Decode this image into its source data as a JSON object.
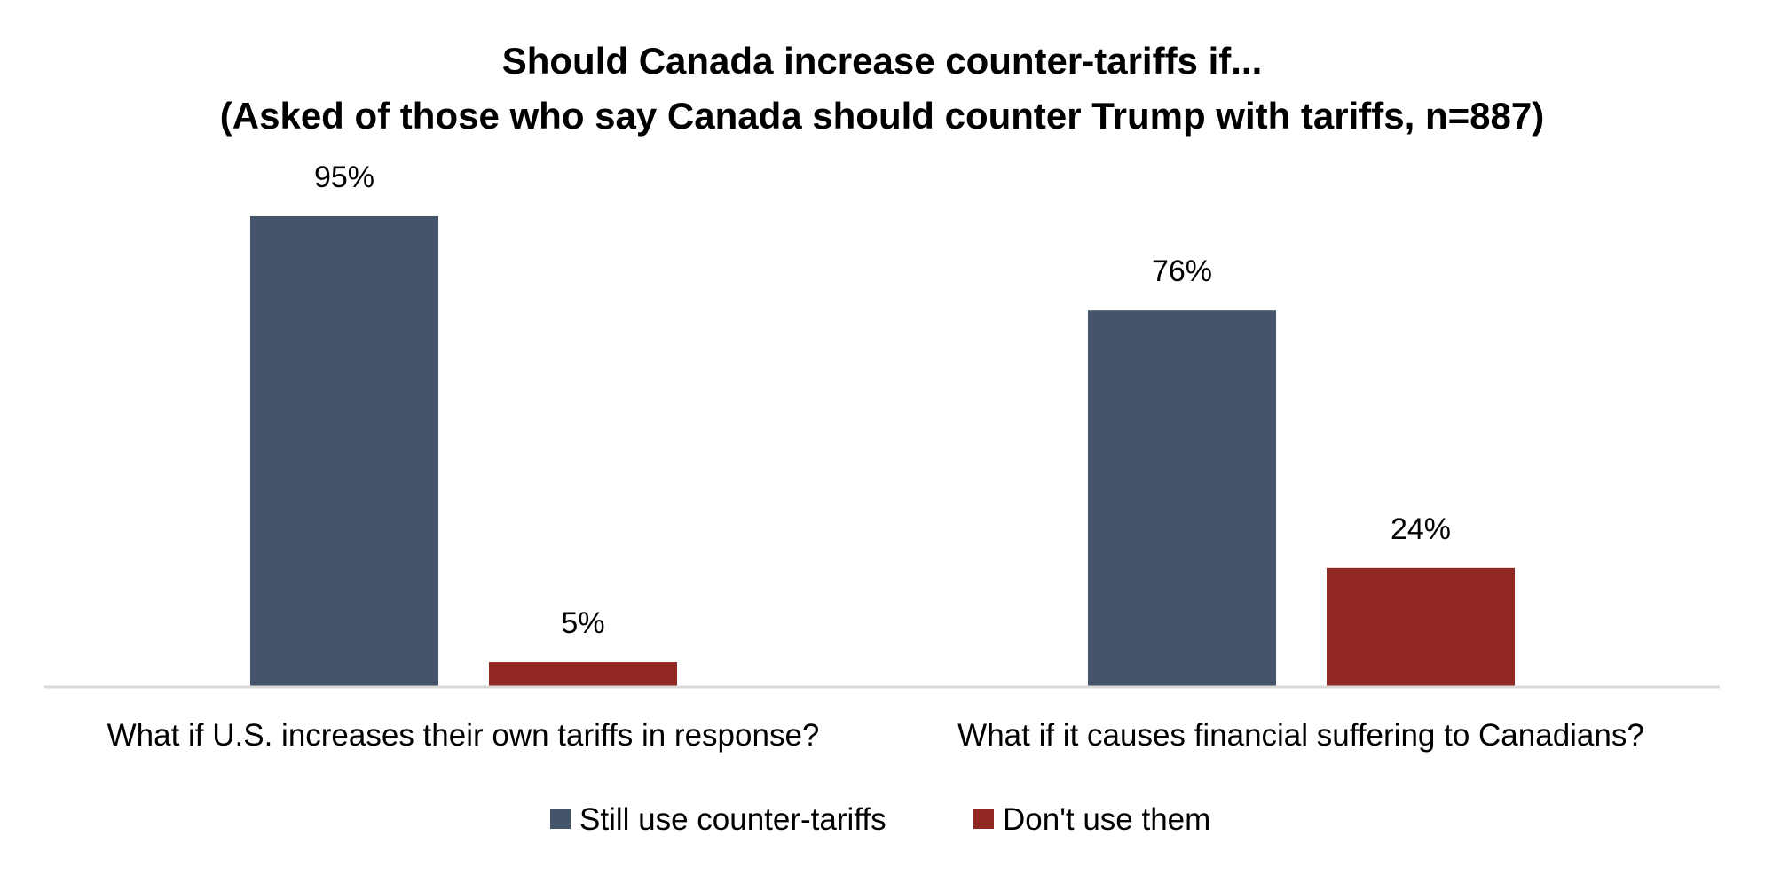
{
  "chart_data": {
    "type": "bar",
    "title": "Should Canada increase counter-tariffs if...",
    "subtitle": "(Asked of those who say Canada should counter Trump with tariffs, n=887)",
    "categories": [
      "What if U.S. increases their own tariffs in response?",
      "What if it causes financial suffering to Canadians?"
    ],
    "series": [
      {
        "name": "Still use counter-tariffs",
        "color": "#44546A",
        "values": [
          95,
          76
        ],
        "labels": [
          "95%",
          "76%"
        ]
      },
      {
        "name": "Don't use them",
        "color": "#922822",
        "values": [
          5,
          24
        ],
        "labels": [
          "5%",
          "24%"
        ]
      }
    ],
    "xlabel": "",
    "ylabel": "",
    "ylim": [
      0,
      100
    ],
    "grid": false,
    "legend": "bottom-center"
  }
}
